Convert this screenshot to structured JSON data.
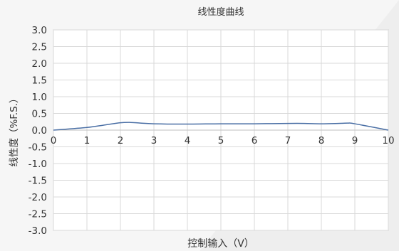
{
  "chart_data": {
    "type": "line",
    "title": "线性度曲线",
    "xlabel": "控制输入（V）",
    "ylabel": "线性度（%F.S.）",
    "xlim": [
      0,
      10
    ],
    "ylim": [
      -3.0,
      3.0
    ],
    "x_ticks": [
      0,
      1,
      2,
      3,
      4,
      5,
      6,
      7,
      8,
      9,
      10
    ],
    "y_ticks": [
      3.0,
      2.5,
      2.0,
      1.5,
      1.0,
      0.5,
      0.0,
      -0.5,
      -1.0,
      -1.5,
      -2.0,
      -2.5,
      -3.0
    ],
    "x_tick_labels": [
      "0",
      "1",
      "2",
      "3",
      "4",
      "5",
      "6",
      "7",
      "8",
      "9",
      "10"
    ],
    "y_tick_labels": [
      "3.0",
      "2.5",
      "2.0",
      "1.5",
      "1.0",
      "0.5",
      "0.0",
      "-0.5",
      "-1.0",
      "-1.5",
      "-2.0",
      "-2.5",
      "-3.0"
    ],
    "grid": true,
    "legend": "none",
    "series": [
      {
        "x": [
          0,
          1,
          1.5,
          2,
          2.3,
          2.6,
          3,
          4,
          5,
          6,
          7,
          7.5,
          8,
          8.5,
          8.8,
          9,
          10
        ],
        "y": [
          0.0,
          0.08,
          0.15,
          0.22,
          0.23,
          0.21,
          0.19,
          0.18,
          0.19,
          0.19,
          0.2,
          0.2,
          0.19,
          0.2,
          0.21,
          0.19,
          0.0
        ],
        "color": "#4a6fa5"
      }
    ],
    "colors": {
      "background": "#f6f6f6",
      "plot_background": "#ffffff",
      "grid": "#d9d9d9",
      "axis": "#bfbfbf",
      "text": "#333333",
      "line": "#4a6fa5"
    }
  }
}
